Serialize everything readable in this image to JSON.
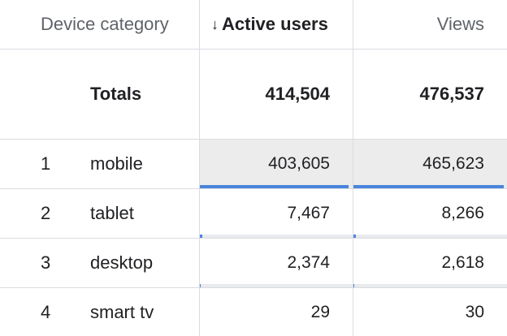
{
  "header": {
    "dimension": "Device category",
    "metric1": "Active users",
    "metric1_sort_icon": "↓",
    "metric2": "Views"
  },
  "totals": {
    "label": "Totals",
    "active_users": "414,504",
    "views": "476,537"
  },
  "rows": [
    {
      "index": "1",
      "device": "mobile",
      "active_users": "403,605",
      "views": "465,623",
      "active_users_share": 0.974,
      "views_share": 0.977
    },
    {
      "index": "2",
      "device": "tablet",
      "active_users": "7,467",
      "views": "8,266",
      "active_users_share": 0.018,
      "views_share": 0.017
    },
    {
      "index": "3",
      "device": "desktop",
      "active_users": "2,374",
      "views": "2,618",
      "active_users_share": 0.006,
      "views_share": 0.005
    },
    {
      "index": "4",
      "device": "smart tv",
      "active_users": "29",
      "views": "30",
      "active_users_share": 0.0001,
      "views_share": 0.0001
    }
  ],
  "colors": {
    "bar": "#4a85dc",
    "highlight_row": "#ececec",
    "grid": "#dadce0"
  }
}
